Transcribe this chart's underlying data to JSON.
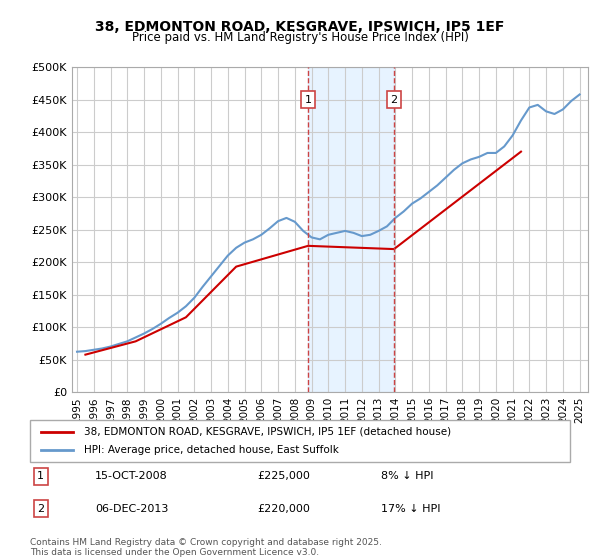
{
  "title_line1": "38, EDMONTON ROAD, KESGRAVE, IPSWICH, IP5 1EF",
  "title_line2": "Price paid vs. HM Land Registry's House Price Index (HPI)",
  "ylabel_ticks": [
    "£0",
    "£50K",
    "£100K",
    "£150K",
    "£200K",
    "£250K",
    "£300K",
    "£350K",
    "£400K",
    "£450K",
    "£500K"
  ],
  "ylim": [
    0,
    500000
  ],
  "yticks": [
    0,
    50000,
    100000,
    150000,
    200000,
    250000,
    300000,
    350000,
    400000,
    450000,
    500000
  ],
  "xlim_start": 1995,
  "xlim_end": 2025.5,
  "legend_line1": "38, EDMONTON ROAD, KESGRAVE, IPSWICH, IP5 1EF (detached house)",
  "legend_line2": "HPI: Average price, detached house, East Suffolk",
  "annotation1_date": "15-OCT-2008",
  "annotation1_price": "£225,000",
  "annotation1_hpi": "8% ↓ HPI",
  "annotation2_date": "06-DEC-2013",
  "annotation2_price": "£220,000",
  "annotation2_hpi": "17% ↓ HPI",
  "footnote": "Contains HM Land Registry data © Crown copyright and database right 2025.\nThis data is licensed under the Open Government Licence v3.0.",
  "color_red": "#cc0000",
  "color_blue": "#6699cc",
  "color_blue_light": "#aabbdd",
  "background_color": "#ffffff",
  "grid_color": "#cccccc",
  "marker1_x": 2008.79,
  "marker2_x": 2013.92,
  "shade_x1": 2008.79,
  "shade_x2": 2013.92,
  "hpi_x": [
    1995,
    1995.5,
    1996,
    1996.5,
    1997,
    1997.5,
    1998,
    1998.5,
    1999,
    1999.5,
    2000,
    2000.5,
    2001,
    2001.5,
    2002,
    2002.5,
    2003,
    2003.5,
    2004,
    2004.5,
    2005,
    2005.5,
    2006,
    2006.5,
    2007,
    2007.5,
    2008,
    2008.5,
    2009,
    2009.5,
    2010,
    2010.5,
    2011,
    2011.5,
    2012,
    2012.5,
    2013,
    2013.5,
    2014,
    2014.5,
    2015,
    2015.5,
    2016,
    2016.5,
    2017,
    2017.5,
    2018,
    2018.5,
    2019,
    2019.5,
    2020,
    2020.5,
    2021,
    2021.5,
    2022,
    2022.5,
    2023,
    2023.5,
    2024,
    2024.5,
    2025
  ],
  "hpi_y": [
    62000,
    63000,
    65000,
    67000,
    70000,
    74000,
    78000,
    84000,
    90000,
    97000,
    105000,
    114000,
    122000,
    132000,
    145000,
    162000,
    178000,
    194000,
    210000,
    222000,
    230000,
    235000,
    242000,
    252000,
    263000,
    268000,
    262000,
    248000,
    238000,
    235000,
    242000,
    245000,
    248000,
    245000,
    240000,
    242000,
    248000,
    255000,
    268000,
    278000,
    290000,
    298000,
    308000,
    318000,
    330000,
    342000,
    352000,
    358000,
    362000,
    368000,
    368000,
    378000,
    395000,
    418000,
    438000,
    442000,
    432000,
    428000,
    435000,
    448000,
    458000
  ],
  "price_x": [
    1995.5,
    1998.5,
    2001.5,
    2004.5,
    2008.79,
    2013.92,
    2021.5
  ],
  "price_y": [
    57500,
    78000,
    115000,
    193000,
    225000,
    220000,
    370000
  ],
  "xtick_years": [
    1995,
    1996,
    1997,
    1998,
    1999,
    2000,
    2001,
    2002,
    2003,
    2004,
    2005,
    2006,
    2007,
    2008,
    2009,
    2010,
    2011,
    2012,
    2013,
    2014,
    2015,
    2016,
    2017,
    2018,
    2019,
    2020,
    2021,
    2022,
    2023,
    2024,
    2025
  ]
}
